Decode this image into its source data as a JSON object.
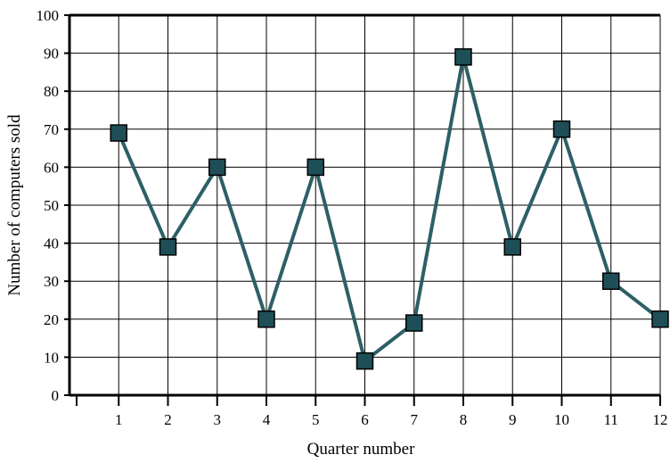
{
  "chart_data": {
    "type": "line",
    "title": "",
    "xlabel": "Quarter number",
    "ylabel": "Number of  computers sold",
    "x": [
      1,
      2,
      3,
      4,
      5,
      6,
      7,
      8,
      9,
      10,
      11,
      12
    ],
    "series": [
      {
        "values": [
          69,
          39,
          60,
          20,
          60,
          9,
          19,
          89,
          39,
          70,
          30,
          20
        ]
      }
    ],
    "xlim": [
      0,
      12
    ],
    "ylim": [
      0,
      100
    ],
    "yticks": [
      0,
      10,
      20,
      30,
      40,
      50,
      60,
      70,
      80,
      90,
      100
    ],
    "xticks": [
      1,
      2,
      3,
      4,
      5,
      6,
      7,
      8,
      9,
      10,
      11,
      12
    ],
    "grid": true,
    "colors": {
      "line": "#2d5f66",
      "marker_fill": "#1e4f58",
      "marker_edge": "#000000",
      "grid": "#000000"
    }
  }
}
